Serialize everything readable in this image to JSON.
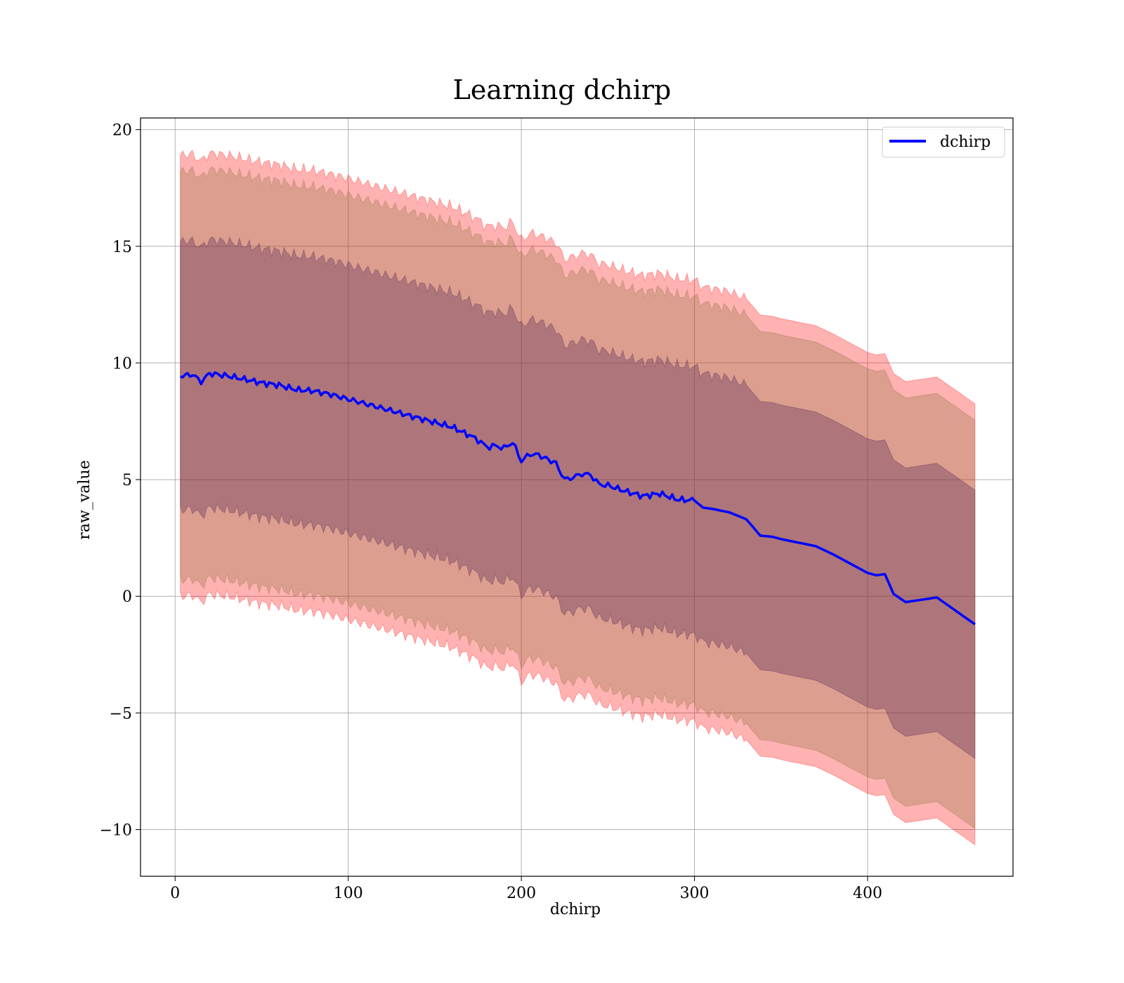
{
  "chart_data": {
    "type": "line",
    "title": "Learning dchirp",
    "xlabel": "dchirp",
    "ylabel": "raw_value",
    "xlim": [
      -20,
      484
    ],
    "ylim": [
      -12,
      20.5
    ],
    "xticks": [
      0,
      100,
      200,
      300,
      400
    ],
    "yticks": [
      -10,
      -5,
      0,
      5,
      10,
      15,
      20
    ],
    "xtick_labels": [
      "0",
      "100",
      "200",
      "300",
      "400"
    ],
    "ytick_labels": [
      "−10",
      "−5",
      "0",
      "5",
      "10",
      "15",
      "20"
    ],
    "grid": true,
    "legend_position": "top-right",
    "series": [
      {
        "name": "dchirp",
        "color": "#0000ff",
        "x": [
          3,
          10,
          15,
          20,
          30,
          40,
          50,
          60,
          70,
          80,
          90,
          100,
          110,
          120,
          130,
          140,
          150,
          160,
          170,
          175,
          180,
          185,
          190,
          195,
          200,
          205,
          210,
          220,
          225,
          230,
          235,
          240,
          245,
          250,
          260,
          270,
          280,
          290,
          300,
          305,
          310,
          320,
          330,
          338,
          345,
          350,
          360,
          370,
          380,
          390,
          395,
          400,
          405,
          410,
          415,
          422,
          440,
          462
        ],
        "y": [
          9.45,
          9.5,
          9.2,
          9.55,
          9.45,
          9.3,
          9.15,
          9.05,
          8.85,
          8.8,
          8.65,
          8.45,
          8.25,
          8.05,
          7.85,
          7.65,
          7.45,
          7.25,
          6.9,
          6.7,
          6.4,
          6.45,
          6.35,
          6.6,
          5.8,
          6.1,
          6.05,
          5.7,
          5.0,
          5.1,
          5.25,
          5.2,
          4.8,
          4.75,
          4.5,
          4.3,
          4.4,
          4.15,
          4.1,
          3.8,
          3.75,
          3.6,
          3.3,
          2.6,
          2.55,
          2.45,
          2.3,
          2.15,
          1.8,
          1.4,
          1.2,
          1.0,
          0.9,
          0.95,
          0.1,
          -0.25,
          -0.05,
          -1.2
        ]
      }
    ],
    "bands": [
      {
        "level": "outer",
        "color": "#ff0000",
        "opacity": 0.3,
        "offset": 9.45,
        "description_label": ""
      },
      {
        "level": "middle",
        "color": "#8b6f3a",
        "opacity": 0.3,
        "offset": 8.75
      },
      {
        "level": "inner",
        "color": "#5a2a5a",
        "opacity": 0.35,
        "offset": 5.75
      }
    ]
  }
}
